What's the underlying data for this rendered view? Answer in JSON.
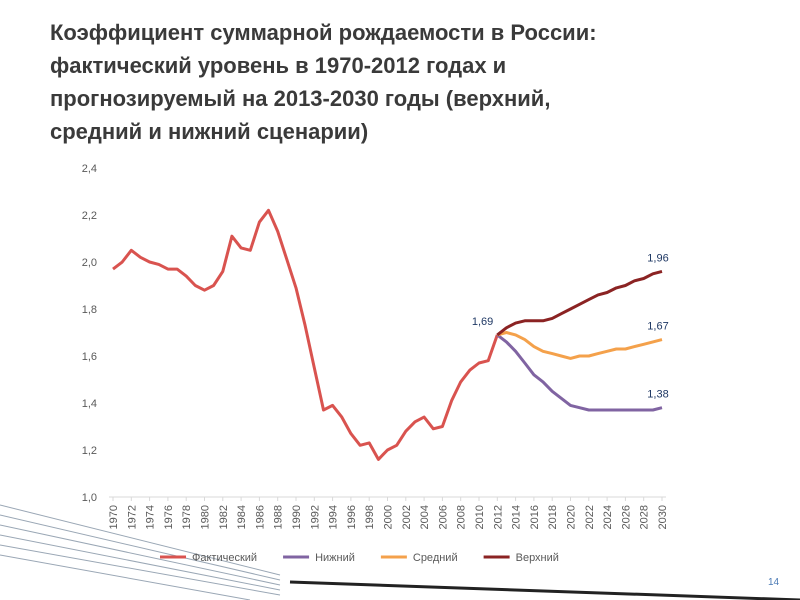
{
  "title_lines": [
    "Коэффициент суммарной рождаемости в России:",
    "фактический уровень в 1970-2012 годах и",
    "прогнозируемый на 2013-2030 годы (верхний,",
    "средний и нижний сценарии)"
  ],
  "page_number": "14",
  "chart_data": {
    "type": "line",
    "x": [
      1970,
      1971,
      1972,
      1973,
      1974,
      1975,
      1976,
      1977,
      1978,
      1979,
      1980,
      1981,
      1982,
      1983,
      1984,
      1985,
      1986,
      1987,
      1988,
      1989,
      1990,
      1991,
      1992,
      1993,
      1994,
      1995,
      1996,
      1997,
      1998,
      1999,
      2000,
      2001,
      2002,
      2003,
      2004,
      2005,
      2006,
      2007,
      2008,
      2009,
      2010,
      2011,
      2012,
      2013,
      2014,
      2015,
      2016,
      2017,
      2018,
      2019,
      2020,
      2021,
      2022,
      2023,
      2024,
      2025,
      2026,
      2027,
      2028,
      2029,
      2030
    ],
    "series": [
      {
        "name": "Фактический",
        "color": "#d9534f",
        "values": [
          1.97,
          2.0,
          2.05,
          2.02,
          2.0,
          1.99,
          1.97,
          1.97,
          1.94,
          1.9,
          1.88,
          1.9,
          1.96,
          2.11,
          2.06,
          2.05,
          2.17,
          2.22,
          2.13,
          2.01,
          1.89,
          1.73,
          1.55,
          1.37,
          1.39,
          1.34,
          1.27,
          1.22,
          1.23,
          1.16,
          1.2,
          1.22,
          1.28,
          1.32,
          1.34,
          1.29,
          1.3,
          1.41,
          1.49,
          1.54,
          1.57,
          1.58,
          1.69,
          null,
          null,
          null,
          null,
          null,
          null,
          null,
          null,
          null,
          null,
          null,
          null,
          null,
          null,
          null,
          null,
          null,
          null
        ]
      },
      {
        "name": "Нижний",
        "color": "#8064a2",
        "values": [
          null,
          null,
          null,
          null,
          null,
          null,
          null,
          null,
          null,
          null,
          null,
          null,
          null,
          null,
          null,
          null,
          null,
          null,
          null,
          null,
          null,
          null,
          null,
          null,
          null,
          null,
          null,
          null,
          null,
          null,
          null,
          null,
          null,
          null,
          null,
          null,
          null,
          null,
          null,
          null,
          null,
          null,
          1.69,
          1.66,
          1.62,
          1.57,
          1.52,
          1.49,
          1.45,
          1.42,
          1.39,
          1.38,
          1.37,
          1.37,
          1.37,
          1.37,
          1.37,
          1.37,
          1.37,
          1.37,
          1.38
        ]
      },
      {
        "name": "Средний",
        "color": "#f4a14b",
        "values": [
          null,
          null,
          null,
          null,
          null,
          null,
          null,
          null,
          null,
          null,
          null,
          null,
          null,
          null,
          null,
          null,
          null,
          null,
          null,
          null,
          null,
          null,
          null,
          null,
          null,
          null,
          null,
          null,
          null,
          null,
          null,
          null,
          null,
          null,
          null,
          null,
          null,
          null,
          null,
          null,
          null,
          null,
          1.69,
          1.7,
          1.69,
          1.67,
          1.64,
          1.62,
          1.61,
          1.6,
          1.59,
          1.6,
          1.6,
          1.61,
          1.62,
          1.63,
          1.63,
          1.64,
          1.65,
          1.66,
          1.67
        ]
      },
      {
        "name": "Верхний",
        "color": "#8b2323",
        "values": [
          null,
          null,
          null,
          null,
          null,
          null,
          null,
          null,
          null,
          null,
          null,
          null,
          null,
          null,
          null,
          null,
          null,
          null,
          null,
          null,
          null,
          null,
          null,
          null,
          null,
          null,
          null,
          null,
          null,
          null,
          null,
          null,
          null,
          null,
          null,
          null,
          null,
          null,
          null,
          null,
          null,
          null,
          1.69,
          1.72,
          1.74,
          1.75,
          1.75,
          1.75,
          1.76,
          1.78,
          1.8,
          1.82,
          1.84,
          1.86,
          1.87,
          1.89,
          1.9,
          1.92,
          1.93,
          1.95,
          1.96
        ]
      }
    ],
    "xlim": [
      1970,
      2030
    ],
    "xticks": [
      1970,
      1972,
      1974,
      1976,
      1978,
      1980,
      1982,
      1984,
      1986,
      1988,
      1990,
      1992,
      1994,
      1996,
      1998,
      2000,
      2002,
      2004,
      2006,
      2008,
      2010,
      2012,
      2014,
      2016,
      2018,
      2020,
      2022,
      2024,
      2026,
      2028,
      2030
    ],
    "ylim": [
      1.0,
      2.4
    ],
    "yticks": [
      {
        "value": 1.0,
        "label": "1,0"
      },
      {
        "value": 1.2,
        "label": "1,2"
      },
      {
        "value": 1.4,
        "label": "1,4"
      },
      {
        "value": 1.6,
        "label": "1,6"
      },
      {
        "value": 1.8,
        "label": "1,8"
      },
      {
        "value": 2.0,
        "label": "2,0"
      },
      {
        "value": 2.2,
        "label": "2,2"
      },
      {
        "value": 2.4,
        "label": "2,4"
      }
    ],
    "annotations": [
      {
        "x": 2012,
        "value": 1.69,
        "label": "1,69"
      },
      {
        "x": 2030,
        "value": 1.96,
        "label": "1,96"
      },
      {
        "x": 2030,
        "value": 1.67,
        "label": "1,67"
      },
      {
        "x": 2030,
        "value": 1.38,
        "label": "1,38"
      }
    ],
    "legend": "bottom"
  }
}
